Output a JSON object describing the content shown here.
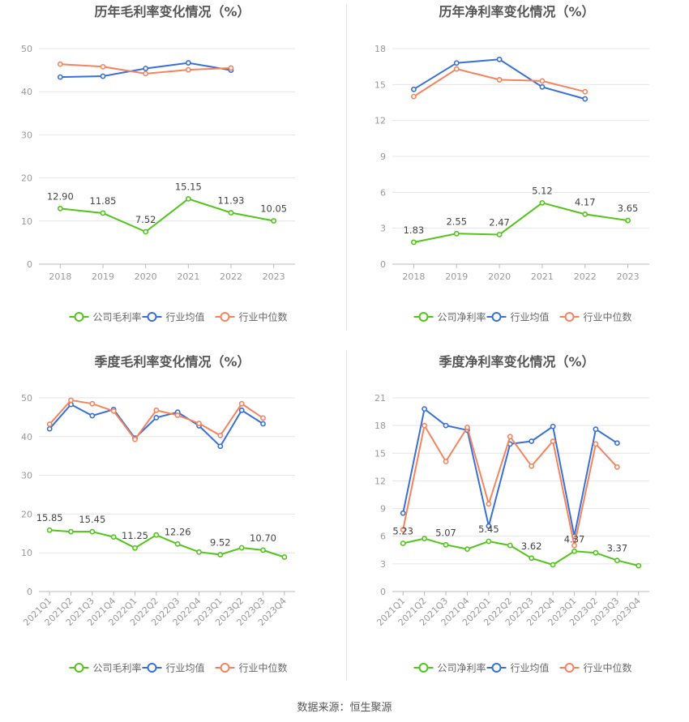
{
  "footer": {
    "source": "数据来源：恒生聚源"
  },
  "colors": {
    "company": "#52c41a",
    "avg": "#3a6fd8",
    "median": "#f4845f",
    "grid": "#e4e4e4",
    "axis": "#999999",
    "title": "#555555"
  },
  "chart_data": [
    {
      "type": "line",
      "title": "历年毛利率变化情况（%）",
      "categories": [
        "2018",
        "2019",
        "2020",
        "2021",
        "2022",
        "2023"
      ],
      "ylim": [
        0,
        50
      ],
      "yticks": [
        0,
        10,
        20,
        30,
        40,
        50
      ],
      "grid": true,
      "legend_position": "bottom",
      "series": [
        {
          "name": "公司毛利率",
          "color": "#52c41a",
          "values": [
            12.9,
            11.85,
            7.52,
            15.15,
            11.93,
            10.05
          ],
          "labels": [
            "12.90",
            "11.85",
            "7.52",
            "15.15",
            "11.93",
            "10.05"
          ]
        },
        {
          "name": "行业均值",
          "color": "#3a6fd8",
          "values": [
            43.4,
            43.6,
            45.4,
            46.7,
            45.0,
            null
          ]
        },
        {
          "name": "行业中位数",
          "color": "#f4845f",
          "values": [
            46.4,
            45.8,
            44.2,
            45.1,
            45.5,
            null
          ]
        }
      ]
    },
    {
      "type": "line",
      "title": "历年净利率变化情况（%）",
      "categories": [
        "2018",
        "2019",
        "2020",
        "2021",
        "2022",
        "2023"
      ],
      "ylim": [
        0,
        18
      ],
      "yticks": [
        0,
        3,
        6,
        9,
        12,
        15,
        18
      ],
      "grid": true,
      "legend_position": "bottom",
      "series": [
        {
          "name": "公司净利率",
          "color": "#52c41a",
          "values": [
            1.83,
            2.55,
            2.47,
            5.12,
            4.17,
            3.65
          ],
          "labels": [
            "1.83",
            "2.55",
            "2.47",
            "5.12",
            "4.17",
            "3.65"
          ]
        },
        {
          "name": "行业均值",
          "color": "#3a6fd8",
          "values": [
            14.6,
            16.8,
            17.1,
            14.8,
            13.8,
            null
          ]
        },
        {
          "name": "行业中位数",
          "color": "#f4845f",
          "values": [
            14.0,
            16.3,
            15.4,
            15.3,
            14.4,
            null
          ]
        }
      ]
    },
    {
      "type": "line",
      "title": "季度毛利率变化情况（%）",
      "categories": [
        "2021Q1",
        "2021Q2",
        "2021Q3",
        "2021Q4",
        "2022Q1",
        "2022Q2",
        "2022Q3",
        "2022Q4",
        "2023Q1",
        "2023Q2",
        "2023Q3",
        "2023Q4"
      ],
      "ylim": [
        0,
        50
      ],
      "yticks": [
        0,
        10,
        20,
        30,
        40,
        50
      ],
      "grid": true,
      "legend_position": "bottom",
      "series": [
        {
          "name": "公司毛利率",
          "color": "#52c41a",
          "values": [
            15.85,
            15.45,
            15.45,
            14.1,
            11.25,
            14.6,
            12.26,
            10.2,
            9.52,
            11.3,
            10.7,
            8.9
          ],
          "labels": [
            "15.85",
            "",
            "15.45",
            "",
            "11.25",
            "",
            "12.26",
            "",
            "9.52",
            "",
            "10.70",
            ""
          ]
        },
        {
          "name": "行业均值",
          "color": "#3a6fd8",
          "values": [
            42.0,
            48.3,
            45.4,
            47.0,
            39.6,
            44.9,
            46.3,
            42.8,
            37.5,
            46.8,
            43.3,
            null
          ]
        },
        {
          "name": "行业中位数",
          "color": "#f4845f",
          "values": [
            43.2,
            49.4,
            48.5,
            46.6,
            39.3,
            46.8,
            45.5,
            43.4,
            40.3,
            48.5,
            44.8,
            null
          ]
        }
      ]
    },
    {
      "type": "line",
      "title": "季度净利率变化情况（%）",
      "categories": [
        "2021Q1",
        "2021Q2",
        "2021Q3",
        "2021Q4",
        "2022Q1",
        "2022Q2",
        "2022Q3",
        "2022Q4",
        "2023Q1",
        "2023Q2",
        "2023Q3",
        "2023Q4"
      ],
      "ylim": [
        0,
        21
      ],
      "yticks": [
        0,
        3,
        6,
        9,
        12,
        15,
        18,
        21
      ],
      "grid": true,
      "legend_position": "bottom",
      "series": [
        {
          "name": "公司净利率",
          "color": "#52c41a",
          "values": [
            5.23,
            5.75,
            5.07,
            4.6,
            5.45,
            5.0,
            3.62,
            2.9,
            4.37,
            4.2,
            3.37,
            2.8
          ],
          "labels": [
            "5.23",
            "",
            "5.07",
            "",
            "5.45",
            "",
            "3.62",
            "",
            "4.37",
            "",
            "3.37",
            ""
          ]
        },
        {
          "name": "行业均值",
          "color": "#3a6fd8",
          "values": [
            8.5,
            19.8,
            18.0,
            17.5,
            7.1,
            16.0,
            16.3,
            17.9,
            6.0,
            17.6,
            16.1,
            null
          ]
        },
        {
          "name": "行业中位数",
          "color": "#f4845f",
          "values": [
            6.7,
            18.0,
            14.1,
            17.8,
            9.5,
            16.8,
            13.6,
            16.3,
            5.0,
            16.0,
            13.5,
            null
          ]
        }
      ]
    }
  ]
}
